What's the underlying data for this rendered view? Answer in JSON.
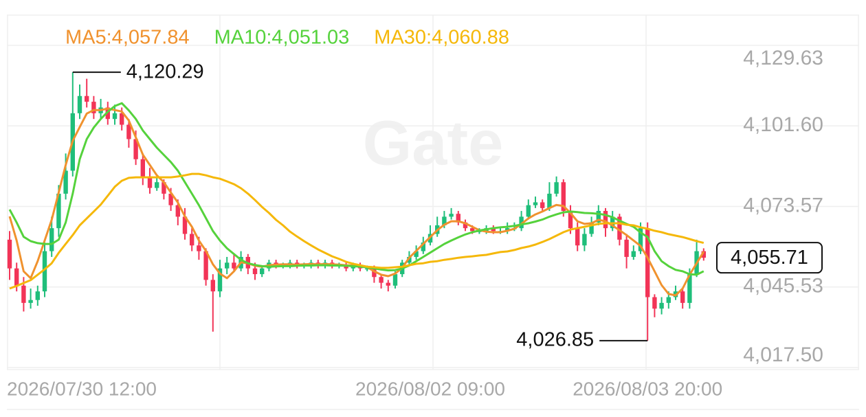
{
  "chart_data": {
    "type": "candlestick",
    "watermark": "Gate",
    "up_color": "#1fbe7a",
    "down_color": "#f23457",
    "ylim": [
      4017.5,
      4129.63
    ],
    "yticks": [
      {
        "value": 4017.5,
        "label": "4,017.50"
      },
      {
        "value": 4045.53,
        "label": "4,045.53"
      },
      {
        "value": 4073.57,
        "label": "4,073.57"
      },
      {
        "value": 4101.6,
        "label": "4,101.60"
      },
      {
        "value": 4129.63,
        "label": "4,129.63"
      }
    ],
    "grid": true,
    "high_label": "4,120.29",
    "low_label": "4,026.85",
    "last_label": "4,055.71",
    "categories": [
      "2026/07/30 12:00",
      null,
      null,
      null,
      null,
      null,
      null,
      null,
      null,
      null,
      null,
      null,
      null,
      null,
      null,
      null,
      null,
      null,
      null,
      null,
      null,
      null,
      null,
      null,
      null,
      null,
      null,
      null,
      null,
      null,
      null,
      null,
      null,
      null,
      null,
      null,
      null,
      null,
      null,
      null,
      null,
      null,
      null,
      null,
      null,
      null,
      null,
      null,
      null,
      null,
      null,
      null,
      null,
      null,
      null,
      null,
      null,
      null,
      null,
      null,
      "2026/08/02 09:00",
      null,
      null,
      null,
      null,
      null,
      null,
      null,
      null,
      null,
      null,
      null,
      null,
      null,
      null,
      null,
      null,
      null,
      null,
      null,
      null,
      null,
      null,
      null,
      null,
      null,
      null,
      null,
      null,
      null,
      null,
      "2026/08/03 20:00",
      null,
      null,
      null,
      null,
      null,
      null,
      null,
      null
    ],
    "open": [
      4062,
      4052,
      4046,
      4040,
      4041,
      4044,
      4058,
      4066,
      4078,
      4086,
      4106,
      4112,
      4110,
      4106,
      4108,
      4104,
      4106,
      4102,
      4097,
      4090,
      4084,
      4080,
      4082,
      4078,
      4074,
      4070,
      4064,
      4060,
      4058,
      4048,
      4044,
      4052,
      4054,
      4052,
      4056,
      4052,
      4050,
      4052,
      4054,
      4053,
      4053,
      4054,
      4053,
      4053,
      4054,
      4053,
      4054,
      4053,
      4053,
      4052,
      4053,
      4052,
      4052,
      4049,
      4047,
      4046,
      4050,
      4054,
      4056,
      4058,
      4061,
      4064,
      4067,
      4070,
      4071,
      4068,
      4066,
      4065,
      4065,
      4066,
      4065,
      4065,
      4066,
      4066,
      4070,
      4074,
      4075,
      4073,
      4078,
      4082,
      4072,
      4066,
      4060,
      4064,
      4068,
      4072,
      4066,
      4070,
      4062,
      4056,
      4058,
      4066,
      4042,
      4038,
      4040,
      4042,
      4044,
      4040,
      4050,
      4058
    ],
    "high": [
      4065,
      4054,
      4049,
      4045,
      4046,
      4061,
      4070,
      4081,
      4092,
      4120.29,
      4116,
      4118,
      4112,
      4111,
      4110,
      4109,
      4108,
      4104,
      4100,
      4092,
      4087,
      4084,
      4083,
      4080,
      4076,
      4073,
      4066,
      4063,
      4059,
      4050,
      4055,
      4056,
      4057,
      4058,
      4057,
      4054,
      4053,
      4055,
      4055,
      4054,
      4055,
      4055,
      4054,
      4055,
      4055,
      4055,
      4055,
      4054,
      4054,
      4054,
      4054,
      4053,
      4053,
      4050,
      4048,
      4051,
      4055,
      4058,
      4060,
      4063,
      4067,
      4070,
      4072,
      4073,
      4072,
      4069,
      4067,
      4066,
      4067,
      4067,
      4066,
      4068,
      4068,
      4072,
      4076,
      4077,
      4076,
      4082,
      4084,
      4083,
      4074,
      4068,
      4066,
      4070,
      4074,
      4073,
      4072,
      4071,
      4064,
      4060,
      4068,
      4068,
      4043,
      4042,
      4044,
      4046,
      4045,
      4052,
      4062,
      4059
    ],
    "low": [
      4048,
      4044,
      4037,
      4038,
      4039,
      4042,
      4056,
      4063,
      4076,
      4084,
      4104,
      4108,
      4104,
      4104,
      4102,
      4102,
      4100,
      4094,
      4088,
      4081,
      4078,
      4079,
      4076,
      4072,
      4067,
      4062,
      4058,
      4055,
      4046,
      4030,
      4042,
      4050,
      4051,
      4051,
      4050,
      4048,
      4049,
      4051,
      4052,
      4052,
      4052,
      4052,
      4052,
      4052,
      4052,
      4052,
      4052,
      4052,
      4051,
      4051,
      4051,
      4051,
      4047,
      4045,
      4044,
      4045,
      4049,
      4053,
      4055,
      4057,
      4060,
      4063,
      4066,
      4069,
      4067,
      4065,
      4064,
      4064,
      4064,
      4064,
      4064,
      4064,
      4065,
      4065,
      4069,
      4073,
      4072,
      4072,
      4077,
      4070,
      4064,
      4058,
      4058,
      4063,
      4067,
      4063,
      4065,
      4060,
      4052,
      4055,
      4057,
      4026.85,
      4035,
      4036,
      4038,
      4041,
      4038,
      4038,
      4049,
      4054.7
    ],
    "close": [
      4052,
      4046,
      4040,
      4041,
      4044,
      4058,
      4066,
      4078,
      4086,
      4106,
      4112,
      4110,
      4106,
      4108,
      4104,
      4106,
      4102,
      4097,
      4090,
      4084,
      4080,
      4082,
      4078,
      4074,
      4070,
      4064,
      4060,
      4058,
      4048,
      4044,
      4052,
      4054,
      4052,
      4056,
      4052,
      4050,
      4052,
      4054,
      4053,
      4053,
      4054,
      4053,
      4053,
      4054,
      4053,
      4054,
      4053,
      4053,
      4052,
      4053,
      4052,
      4052,
      4049,
      4047,
      4046,
      4050,
      4054,
      4056,
      4058,
      4061,
      4064,
      4067,
      4070,
      4071,
      4068,
      4066,
      4065,
      4065,
      4066,
      4065,
      4065,
      4066,
      4066,
      4070,
      4074,
      4075,
      4073,
      4078,
      4082,
      4072,
      4066,
      4060,
      4064,
      4068,
      4072,
      4066,
      4070,
      4062,
      4056,
      4058,
      4066,
      4042,
      4038,
      4040,
      4042,
      4044,
      4040,
      4050,
      4058,
      4055.71
    ],
    "series": [
      {
        "name": "MA5:4,057.84",
        "color": "#f0922e",
        "values": [
          4070.1,
          4061.7,
          4051.0,
          4048.6,
          4054.5,
          4061.7,
          4068.9,
          4078.4,
          4088.0,
          4096.4,
          4101.2,
          4105.9,
          4107.1,
          4107.1,
          4107.6,
          4107.1,
          4106.6,
          4103.5,
          4097.6,
          4091.6,
          4088.0,
          4084.4,
          4082.0,
          4078.4,
          4074.9,
          4070.1,
          4066.5,
          4061.7,
          4058.1,
          4053.4,
          4050.2,
          4048.6,
          4051.0,
          4054.1,
          4053.8,
          4052.9,
          4052.6,
          4053.1,
          4053.3,
          4053.4,
          4053.4,
          4053.3,
          4053.4,
          4053.5,
          4053.4,
          4053.5,
          4053.4,
          4053.3,
          4053.1,
          4053.0,
          4052.8,
          4052.4,
          4051.0,
          4049.8,
          4049.3,
          4050.2,
          4052.2,
          4055.7,
          4058.1,
          4060.5,
          4062.9,
          4065.3,
          4067.2,
          4068.4,
          4068.4,
          4067.7,
          4066.5,
          4065.3,
          4064.8,
          4064.6,
          4064.6,
          4065.1,
          4065.8,
          4067.5,
          4069.4,
          4070.8,
          4071.8,
          4073.0,
          4074.1,
          4073.7,
          4071.3,
          4068.4,
          4067.5,
          4067.7,
          4068.9,
          4068.4,
          4066.9,
          4065.3,
          4063.6,
          4061.7,
          4059.8,
          4055.7,
          4051.0,
          4046.2,
          4043.1,
          4042.6,
          4045.0,
          4049.8,
          4053.8,
          4057.84
        ]
      },
      {
        "name": "MA10:4,051.03",
        "color": "#55d23c",
        "values": [
          4072.5,
          4068.0,
          4063.0,
          4061.5,
          4060.8,
          4060.5,
          4060.5,
          4062.0,
          4068.0,
          4078.0,
          4090.0,
          4097.0,
          4101.0,
          4104.0,
          4106.5,
          4108.5,
          4109.5,
          4107.0,
          4104.0,
          4100.0,
          4097.0,
          4094.0,
          4091.5,
          4089.0,
          4086.0,
          4082.0,
          4078.0,
          4074.0,
          4069.5,
          4065.0,
          4061.7,
          4059.0,
          4057.0,
          4055.0,
          4053.8,
          4053.2,
          4052.8,
          4052.6,
          4052.7,
          4052.8,
          4052.8,
          4052.9,
          4053.0,
          4053.0,
          4053.1,
          4053.1,
          4053.0,
          4053.0,
          4052.9,
          4052.8,
          4052.6,
          4052.4,
          4052.0,
          4051.6,
          4051.3,
          4051.4,
          4052.0,
          4053.0,
          4054.5,
          4056.0,
          4057.5,
          4059.0,
          4060.5,
          4061.7,
          4062.8,
          4063.8,
          4064.6,
          4065.2,
          4065.6,
          4066.0,
          4066.3,
          4066.5,
          4066.8,
          4067.3,
          4067.7,
          4068.3,
          4069.0,
          4070.0,
          4070.8,
          4071.5,
          4071.8,
          4071.6,
          4071.3,
          4071.2,
          4071.0,
          4070.6,
          4069.8,
          4068.6,
          4067.5,
          4066.5,
          4064.5,
          4062.9,
          4058.0,
          4054.5,
          4052.8,
          4051.5,
          4051.0,
          4050.0,
          4049.8,
          4051.03
        ]
      },
      {
        "name": "MA30:4,060.88",
        "color": "#f5b80a",
        "values": [
          4045.0,
          4045.9,
          4046.9,
          4047.9,
          4049.8,
          4051.7,
          4053.8,
          4057.4,
          4060.5,
          4063.6,
          4067.0,
          4069.4,
          4071.8,
          4074.2,
          4077.3,
          4080.4,
          4082.5,
          4083.5,
          4083.7,
          4083.7,
          4083.7,
          4083.7,
          4083.7,
          4083.7,
          4084.0,
          4084.4,
          4084.9,
          4084.9,
          4084.4,
          4083.7,
          4083.2,
          4082.3,
          4081.3,
          4079.9,
          4078.0,
          4075.8,
          4073.4,
          4071.3,
          4068.9,
          4067.0,
          4064.8,
          4063.1,
          4061.5,
          4060.0,
          4058.6,
          4057.4,
          4056.2,
          4055.3,
          4054.3,
          4053.6,
          4053.1,
          4052.6,
          4052.4,
          4052.2,
          4052.2,
          4052.4,
          4052.6,
          4053.1,
          4053.6,
          4053.8,
          4054.3,
          4054.5,
          4055.0,
          4055.3,
          4055.7,
          4056.0,
          4056.2,
          4056.5,
          4056.7,
          4057.2,
          4057.7,
          4057.9,
          4058.4,
          4059.1,
          4059.6,
          4060.3,
          4061.2,
          4062.2,
          4063.4,
          4064.6,
          4065.5,
          4066.0,
          4066.5,
          4067.0,
          4067.5,
          4067.7,
          4067.7,
          4067.7,
          4067.2,
          4067.0,
          4066.3,
          4065.8,
          4065.1,
          4064.6,
          4063.9,
          4063.4,
          4062.9,
          4062.2,
          4061.5,
          4060.88
        ]
      }
    ]
  }
}
